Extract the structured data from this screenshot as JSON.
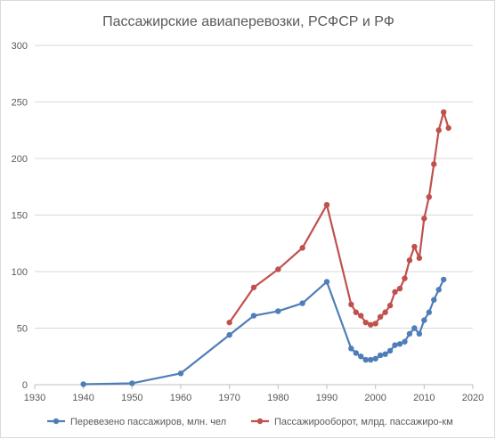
{
  "chart_data": {
    "type": "line",
    "title": "Пассажирские авиаперевозки, РСФСР и РФ",
    "xlim": [
      1930,
      2020
    ],
    "ylim": [
      0,
      300
    ],
    "x_ticks": [
      1930,
      1940,
      1950,
      1960,
      1970,
      1980,
      1990,
      2000,
      2010,
      2020
    ],
    "y_ticks": [
      0,
      50,
      100,
      150,
      200,
      250,
      300
    ],
    "grid": "horizontal",
    "legend": "bottom",
    "series": [
      {
        "name": "Перевезено пассажиров, млн. чел",
        "color": "#4f7db8",
        "points": [
          [
            1940,
            0.4
          ],
          [
            1950,
            1.2
          ],
          [
            1960,
            10
          ],
          [
            1970,
            44
          ],
          [
            1975,
            61
          ],
          [
            1980,
            65
          ],
          [
            1985,
            72
          ],
          [
            1990,
            91
          ],
          [
            1995,
            32
          ],
          [
            1996,
            28
          ],
          [
            1997,
            25
          ],
          [
            1998,
            22
          ],
          [
            1999,
            22
          ],
          [
            2000,
            23
          ],
          [
            2001,
            26
          ],
          [
            2002,
            27
          ],
          [
            2003,
            30
          ],
          [
            2004,
            35
          ],
          [
            2005,
            36
          ],
          [
            2006,
            38
          ],
          [
            2007,
            45
          ],
          [
            2008,
            50
          ],
          [
            2009,
            45
          ],
          [
            2010,
            57
          ],
          [
            2011,
            64
          ],
          [
            2012,
            75
          ],
          [
            2013,
            84
          ],
          [
            2014,
            93
          ]
        ]
      },
      {
        "name": "Пассажирооборот, млрд. пассажиро-км",
        "color": "#c0504d",
        "points": [
          [
            1970,
            55
          ],
          [
            1975,
            86
          ],
          [
            1980,
            102
          ],
          [
            1985,
            121
          ],
          [
            1990,
            159
          ],
          [
            1995,
            71
          ],
          [
            1996,
            64
          ],
          [
            1997,
            61
          ],
          [
            1998,
            55
          ],
          [
            1999,
            53
          ],
          [
            2000,
            54
          ],
          [
            2001,
            60
          ],
          [
            2002,
            64
          ],
          [
            2003,
            70
          ],
          [
            2004,
            82
          ],
          [
            2005,
            85
          ],
          [
            2006,
            94
          ],
          [
            2007,
            110
          ],
          [
            2008,
            122
          ],
          [
            2009,
            112
          ],
          [
            2010,
            147
          ],
          [
            2011,
            166
          ],
          [
            2012,
            195
          ],
          [
            2013,
            225
          ],
          [
            2014,
            241
          ],
          [
            2015,
            227
          ]
        ]
      }
    ]
  }
}
